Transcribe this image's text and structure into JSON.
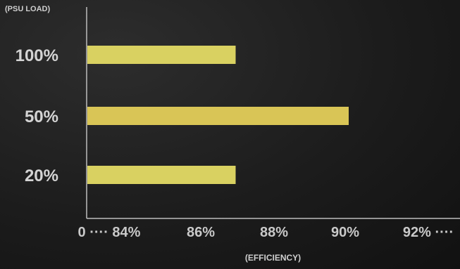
{
  "chart_data": {
    "type": "bar",
    "orientation": "horizontal",
    "categories": [
      "100%",
      "50%",
      "20%"
    ],
    "values": [
      87,
      90,
      87
    ],
    "xlabel": "(EFFICIENCY)",
    "ylabel": "(PSU LOAD)",
    "xlim": [
      83,
      95
    ],
    "x_ticks": [
      84,
      86,
      88,
      90,
      92
    ],
    "x_tick_labels": [
      "0 ···· 84%",
      "86%",
      "88%",
      "90%",
      "92% ····"
    ],
    "axis_break": true,
    "grid": false,
    "legend": "none",
    "bar_colors": [
      "#d9d161",
      "#d9c556",
      "#d9d161"
    ],
    "axis_color": "#bdbdbd",
    "background": "#1c1c1c"
  }
}
